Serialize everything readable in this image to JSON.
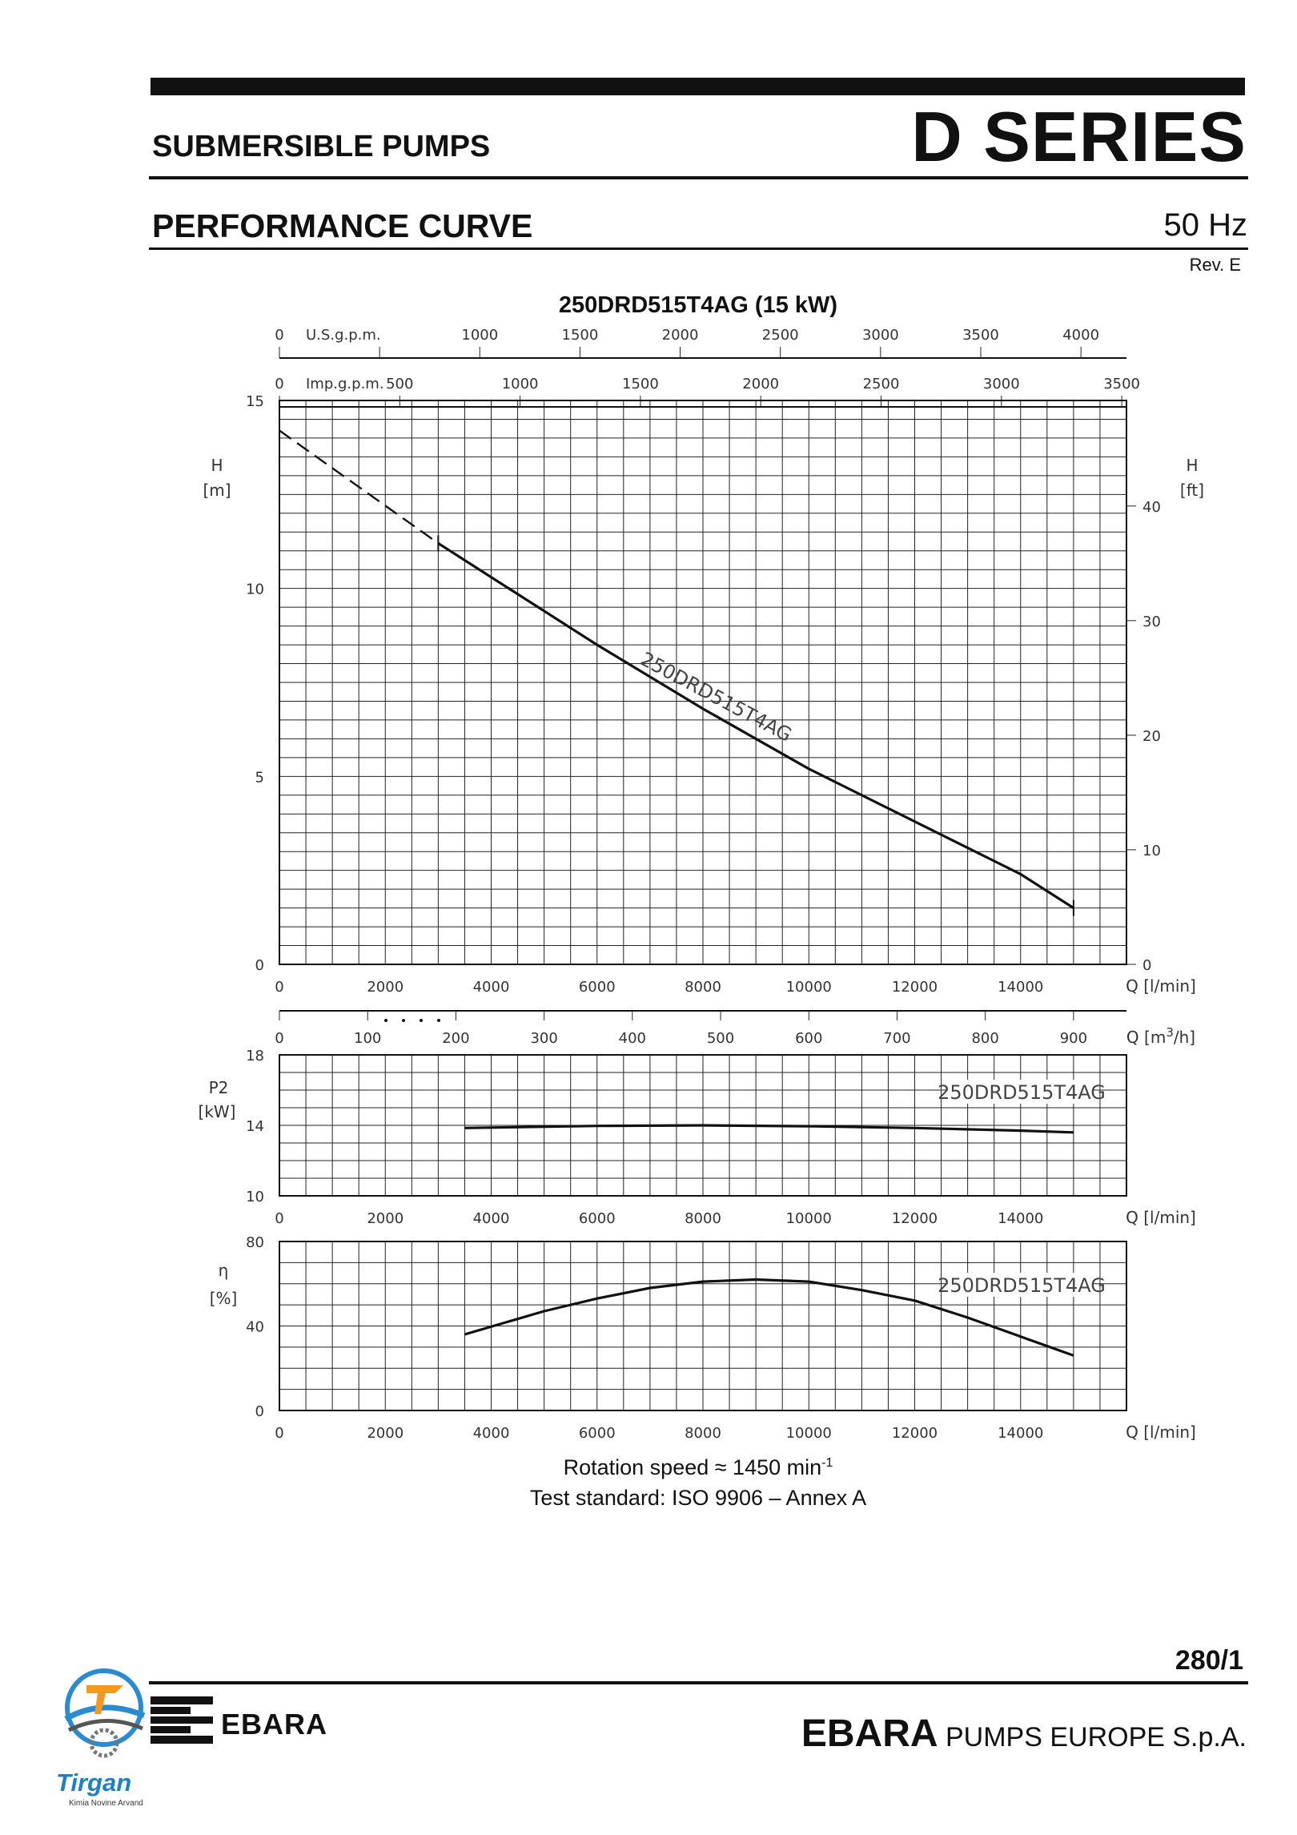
{
  "header": {
    "left_title": "SUBMERSIBLE PUMPS",
    "right_title": "D SERIES",
    "section_title": "PERFORMANCE CURVE",
    "frequency": "50 Hz",
    "revision": "Rev. E"
  },
  "notes": {
    "rotation_speed": "Rotation speed ≈ 1450 min",
    "rotation_unit_exponent": "-1",
    "test_standard": "Test standard: ISO 9906 – Annex A"
  },
  "footer": {
    "page_number": "280/1",
    "brand": "EBARA",
    "company_bold": "EBARA",
    "company_rest": " PUMPS EUROPE S.p.A.",
    "partner_logo_text": "Tirgan",
    "partner_logo_subtext": "Kimia Novine Arvand"
  },
  "colors": {
    "ink": "#111111",
    "accent_blue": "#1f7fc1",
    "accent_orange": "#f39a1e"
  },
  "chart_data": {
    "type": "line",
    "title": "250DRD515T4AG (15 kW)",
    "series_name": "250DRD515T4AG",
    "top_axes": {
      "usgpm": {
        "label": "U.S.g.p.m.",
        "ticks": [
          "0",
          "1000",
          "1500",
          "2000",
          "2500",
          "3000",
          "3500",
          "4000"
        ],
        "extra_minor": "500"
      },
      "impgpm": {
        "label": "Imp.g.p.m.",
        "ticks": [
          "0",
          "500",
          "1000",
          "1500",
          "2000",
          "2500",
          "3000",
          "3500"
        ]
      }
    },
    "flow_axis": {
      "label": "Q [l/min]",
      "range": [
        0,
        16000
      ],
      "ticks": [
        "0",
        "2000",
        "4000",
        "6000",
        "8000",
        "10000",
        "12000",
        "14000"
      ]
    },
    "m3h_axis": {
      "label": "Q [m3/h]",
      "ticks": [
        "0",
        "100",
        "200",
        "300",
        "400",
        "500",
        "600",
        "700",
        "800",
        "900"
      ]
    },
    "head_panel": {
      "ylabel": "H",
      "yunit": "[m]",
      "ylim": [
        0,
        15
      ],
      "yticks": [
        "0",
        "5",
        "10",
        "15"
      ],
      "right_label": "H",
      "right_unit": "[ft]",
      "right_ticks": [
        "0",
        "10",
        "20",
        "30",
        "40"
      ],
      "dashed": {
        "x": [
          0,
          3000
        ],
        "y": [
          14.2,
          11.2
        ]
      },
      "solid": {
        "x": [
          3000,
          4000,
          6000,
          8000,
          10000,
          12000,
          14000,
          15000
        ],
        "y": [
          11.2,
          10.3,
          8.5,
          6.8,
          5.2,
          3.8,
          2.4,
          1.5
        ]
      }
    },
    "power_panel": {
      "ylabel": "P2",
      "yunit": "[kW]",
      "ylim": [
        10,
        18
      ],
      "yticks": [
        "10",
        "14",
        "18"
      ],
      "x": [
        3500,
        6000,
        8000,
        10000,
        12000,
        14000,
        15000
      ],
      "y": [
        13.85,
        13.97,
        14.0,
        13.95,
        13.85,
        13.7,
        13.6
      ]
    },
    "eff_panel": {
      "ylabel": "η",
      "yunit": "[%]",
      "ylim": [
        0,
        80
      ],
      "yticks": [
        "0",
        "40",
        "80"
      ],
      "x": [
        3500,
        5000,
        6000,
        7000,
        8000,
        9000,
        10000,
        11000,
        12000,
        13000,
        14000,
        15000
      ],
      "y": [
        36,
        47,
        53,
        58,
        61,
        62,
        61,
        57,
        52,
        44,
        35,
        26
      ]
    }
  }
}
